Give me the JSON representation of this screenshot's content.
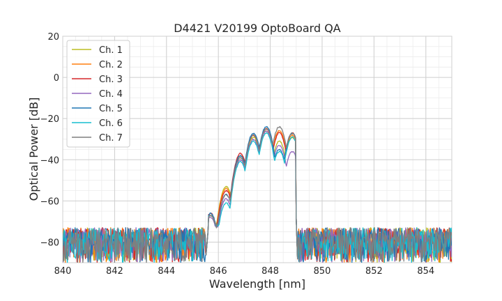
{
  "chart_data": {
    "type": "line",
    "title": "D4421 V20199 OptoBoard QA",
    "xlabel": "Wavelength [nm]",
    "ylabel": "Optical Power [dB]",
    "xlim": [
      840,
      855
    ],
    "ylim": [
      -90,
      20
    ],
    "x_major_ticks": [
      840,
      842,
      844,
      846,
      848,
      850,
      852,
      854
    ],
    "x_tick_labels": [
      "840",
      "842",
      "844",
      "846",
      "848",
      "850",
      "852",
      "854"
    ],
    "y_major_ticks": [
      -80,
      -60,
      -40,
      -20,
      0,
      20
    ],
    "y_tick_labels": [
      "−80",
      "−60",
      "−40",
      "−20",
      "0",
      "20"
    ],
    "grid": true,
    "minor_grid": true,
    "legend_position": "top-left",
    "noise_floor_range": [
      -90,
      -73
    ],
    "series": [
      {
        "name": "Ch. 1",
        "color": "#bcbd22",
        "peaks": [
          {
            "x": 845.7,
            "y": -67
          },
          {
            "x": 846.3,
            "y": -53
          },
          {
            "x": 846.85,
            "y": -39
          },
          {
            "x": 847.35,
            "y": -29
          },
          {
            "x": 847.85,
            "y": -26
          },
          {
            "x": 848.35,
            "y": -31
          },
          {
            "x": 848.85,
            "y": -29
          }
        ]
      },
      {
        "name": "Ch. 2",
        "color": "#ff7f0e",
        "peaks": [
          {
            "x": 845.7,
            "y": -67
          },
          {
            "x": 846.3,
            "y": -54
          },
          {
            "x": 846.85,
            "y": -38
          },
          {
            "x": 847.35,
            "y": -28
          },
          {
            "x": 847.85,
            "y": -25
          },
          {
            "x": 848.35,
            "y": -26
          },
          {
            "x": 848.85,
            "y": -28
          }
        ]
      },
      {
        "name": "Ch. 3",
        "color": "#d62728",
        "peaks": [
          {
            "x": 845.7,
            "y": -66
          },
          {
            "x": 846.3,
            "y": -55
          },
          {
            "x": 846.85,
            "y": -37
          },
          {
            "x": 847.35,
            "y": -28
          },
          {
            "x": 847.85,
            "y": -25
          },
          {
            "x": 848.35,
            "y": -27
          },
          {
            "x": 848.85,
            "y": -27
          }
        ]
      },
      {
        "name": "Ch. 4",
        "color": "#9467bd",
        "peaks": [
          {
            "x": 845.7,
            "y": -68
          },
          {
            "x": 846.3,
            "y": -59
          },
          {
            "x": 846.85,
            "y": -40
          },
          {
            "x": 847.35,
            "y": -30
          },
          {
            "x": 847.85,
            "y": -26
          },
          {
            "x": 848.35,
            "y": -33
          },
          {
            "x": 848.85,
            "y": -36
          }
        ]
      },
      {
        "name": "Ch. 5",
        "color": "#1f77b4",
        "peaks": [
          {
            "x": 845.7,
            "y": -66
          },
          {
            "x": 846.3,
            "y": -57
          },
          {
            "x": 846.85,
            "y": -38
          },
          {
            "x": 847.35,
            "y": -27
          },
          {
            "x": 847.85,
            "y": -24
          },
          {
            "x": 848.35,
            "y": -35
          },
          {
            "x": 848.85,
            "y": -27
          }
        ]
      },
      {
        "name": "Ch. 6",
        "color": "#17becf",
        "peaks": [
          {
            "x": 845.7,
            "y": -67
          },
          {
            "x": 846.3,
            "y": -61
          },
          {
            "x": 846.85,
            "y": -41
          },
          {
            "x": 847.35,
            "y": -31
          },
          {
            "x": 847.85,
            "y": -27
          },
          {
            "x": 848.35,
            "y": -36
          },
          {
            "x": 848.85,
            "y": -29
          }
        ]
      },
      {
        "name": "Ch. 7",
        "color": "#7f7f7f",
        "peaks": [
          {
            "x": 845.7,
            "y": -67
          },
          {
            "x": 846.3,
            "y": -57
          },
          {
            "x": 846.85,
            "y": -39
          },
          {
            "x": 847.35,
            "y": -28
          },
          {
            "x": 847.85,
            "y": -25
          },
          {
            "x": 848.35,
            "y": -24
          },
          {
            "x": 848.85,
            "y": -27
          }
        ]
      }
    ]
  }
}
